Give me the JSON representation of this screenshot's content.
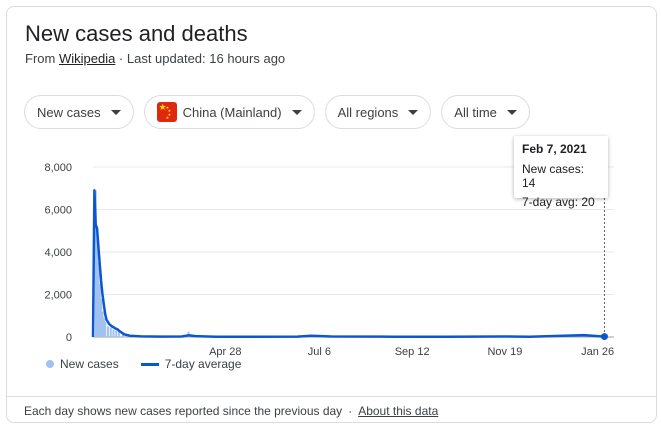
{
  "card": {
    "title": "New cases and deaths",
    "source_prefix": "From ",
    "source_link": "Wikipedia",
    "updated": " · Last updated: 16 hours ago"
  },
  "filters": {
    "metric": "New cases",
    "country_flag_icon": "china-flag-icon",
    "country": "China (Mainland)",
    "region": "All regions",
    "time": "All time"
  },
  "chart_data": {
    "type": "bar",
    "y_ticks": [
      "8,000",
      "6,000",
      "4,000",
      "2,000",
      "0"
    ],
    "ylim": [
      0,
      8000
    ],
    "x_ticks": [
      "Apr 28",
      "Jul 6",
      "Sep 12",
      "Nov 19",
      "Jan 26"
    ],
    "xlim": [
      "2020-01-22",
      "2021-02-07"
    ],
    "series": [
      {
        "name": "New cases",
        "color": "#a1c2f0",
        "values": [
          [
            0,
            0
          ],
          [
            2,
            6900
          ],
          [
            3,
            5200
          ],
          [
            4,
            3500
          ],
          [
            5,
            2500
          ],
          [
            6,
            1800
          ],
          [
            7,
            1200
          ],
          [
            8,
            900
          ],
          [
            9,
            700
          ],
          [
            11,
            500
          ],
          [
            13,
            450
          ],
          [
            15,
            350
          ],
          [
            17,
            300
          ],
          [
            19,
            250
          ],
          [
            22,
            150
          ],
          [
            25,
            80
          ],
          [
            30,
            50
          ],
          [
            40,
            30
          ],
          [
            50,
            20
          ],
          [
            60,
            20
          ],
          [
            70,
            250
          ],
          [
            72,
            60
          ],
          [
            100,
            20
          ],
          [
            130,
            20
          ],
          [
            160,
            60
          ],
          [
            200,
            20
          ],
          [
            250,
            20
          ],
          [
            300,
            40
          ],
          [
            330,
            60
          ],
          [
            375,
            14
          ]
        ]
      },
      {
        "name": "7-day average",
        "color": "#0b57d0",
        "values": [
          [
            0,
            0
          ],
          [
            1,
            6900
          ],
          [
            2,
            5300
          ],
          [
            3,
            5100
          ],
          [
            4,
            4200
          ],
          [
            5,
            3400
          ],
          [
            6,
            2600
          ],
          [
            7,
            2000
          ],
          [
            8,
            1500
          ],
          [
            9,
            1050
          ],
          [
            10,
            800
          ],
          [
            12,
            600
          ],
          [
            14,
            500
          ],
          [
            16,
            420
          ],
          [
            18,
            360
          ],
          [
            20,
            250
          ],
          [
            23,
            120
          ],
          [
            27,
            60
          ],
          [
            35,
            30
          ],
          [
            50,
            20
          ],
          [
            65,
            25
          ],
          [
            70,
            80
          ],
          [
            75,
            40
          ],
          [
            90,
            15
          ],
          [
            120,
            15
          ],
          [
            150,
            20
          ],
          [
            160,
            60
          ],
          [
            175,
            25
          ],
          [
            220,
            15
          ],
          [
            260,
            15
          ],
          [
            300,
            25
          ],
          [
            320,
            15
          ],
          [
            345,
            60
          ],
          [
            360,
            90
          ],
          [
            370,
            40
          ],
          [
            375,
            20
          ]
        ]
      }
    ],
    "legend_position": "bottom-left",
    "grid": true
  },
  "tooltip": {
    "date": "Feb 7, 2021",
    "new_cases": "New cases: 14",
    "avg": "7-day avg: 20"
  },
  "legend": {
    "new_cases": "New cases",
    "avg": "7-day average"
  },
  "footer": {
    "note": "Each day shows new cases reported since the previous day",
    "separator": "·",
    "link": "About this data"
  }
}
